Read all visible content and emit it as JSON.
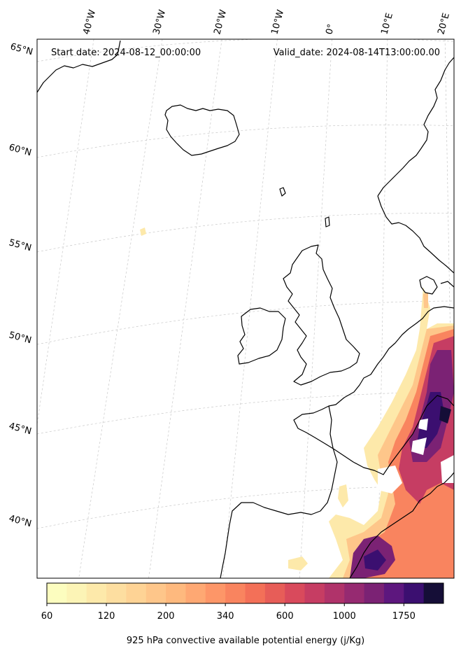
{
  "header": {
    "start_date": "Start date: 2024-08-12_00:00:00",
    "valid_date": "Valid_date: 2024-08-14T13:00:00.00"
  },
  "map": {
    "projection": "lambert-conformal",
    "lon_labels": [
      "40°W",
      "30°W",
      "20°W",
      "10°W",
      "0°",
      "10°E",
      "20°E"
    ],
    "lat_labels": [
      "65°N",
      "60°N",
      "55°N",
      "50°N",
      "45°N",
      "40°N"
    ],
    "coastline_color": "#000000",
    "gridline_color": "#bbbbbb"
  },
  "colorbar": {
    "title": "925 hPa convective available potential energy (j/Kg)",
    "tick_labels": [
      "60",
      "120",
      "200",
      "340",
      "600",
      "1000",
      "1750"
    ],
    "colormap": "magma_r",
    "colors": [
      "#fcfdbf",
      "#fcf4b6",
      "#fde9aa",
      "#fddea0",
      "#fed395",
      "#fec68a",
      "#feb97e",
      "#fea873",
      "#fd9668",
      "#f9845f",
      "#f37058",
      "#e75d58",
      "#d94a5c",
      "#c63d63",
      "#b0336a",
      "#962a71",
      "#7b2274",
      "#5d177e",
      "#3b0f70",
      "#150e37"
    ]
  }
}
